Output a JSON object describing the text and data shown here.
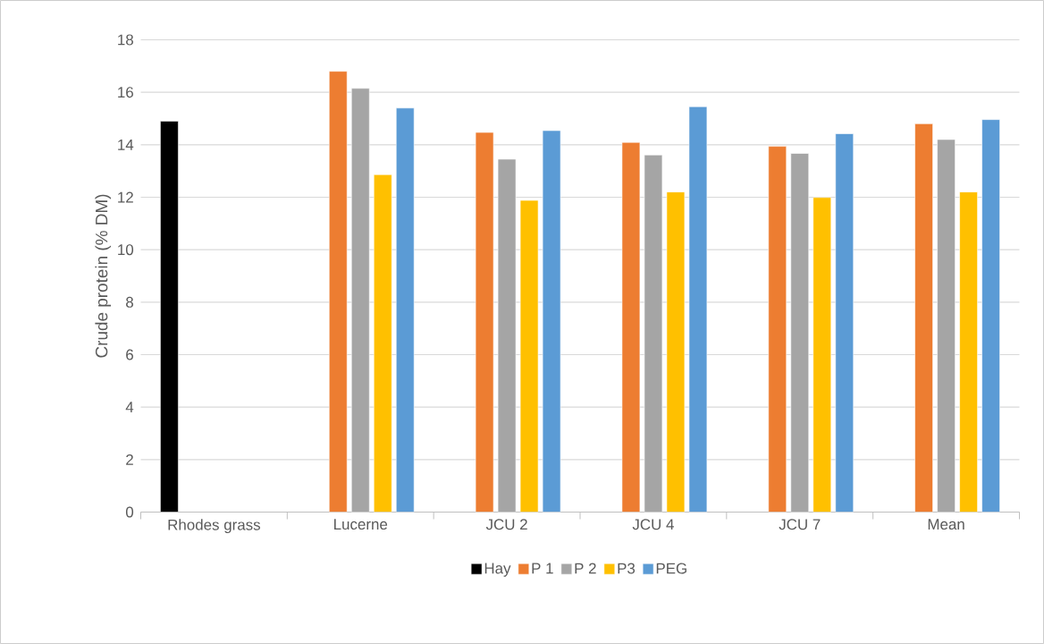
{
  "chart_data": {
    "type": "bar",
    "ylabel": "Crude protein (% DM)",
    "categories": [
      "Rhodes grass",
      "Lucerne",
      "JCU 2",
      "JCU 4",
      "JCU 7",
      "Mean"
    ],
    "series": [
      {
        "name": "Hay",
        "color": "#000000",
        "values": [
          14.9,
          null,
          null,
          null,
          null,
          null
        ]
      },
      {
        "name": "P 1",
        "color": "#ed7d31",
        "values": [
          null,
          16.8,
          14.47,
          14.09,
          13.94,
          14.8
        ]
      },
      {
        "name": "P 2",
        "color": "#a5a5a5",
        "values": [
          null,
          16.15,
          13.45,
          13.61,
          13.67,
          14.2
        ]
      },
      {
        "name": "P3",
        "color": "#ffc000",
        "values": [
          null,
          12.86,
          11.88,
          12.2,
          11.99,
          12.2
        ]
      },
      {
        "name": "PEG",
        "color": "#5b9bd5",
        "values": [
          null,
          15.4,
          14.54,
          15.45,
          14.42,
          14.96
        ]
      }
    ],
    "ylim": [
      0,
      18
    ],
    "yticks": [
      0,
      2,
      4,
      6,
      8,
      10,
      12,
      14,
      16,
      18
    ],
    "grid": "y",
    "legend": "bottom"
  }
}
